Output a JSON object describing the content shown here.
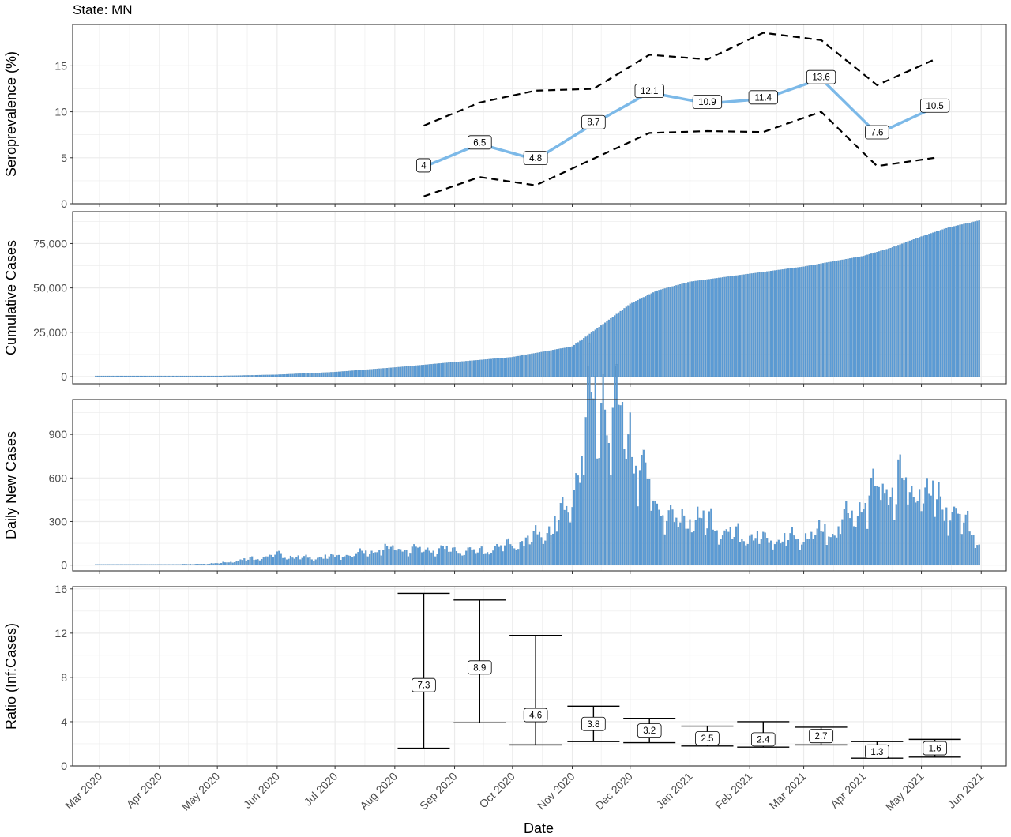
{
  "title": "State: MN",
  "xlabel": "Date",
  "colors": {
    "bar": "#5b9bd5",
    "sero_line": "#7cb9e8",
    "ci_line": "#000000",
    "grid": "#ebebeb",
    "panel_border": "#333333"
  },
  "x_axis": {
    "range": [
      "2020-02-16",
      "2021-06-14"
    ],
    "ticks": [
      "2020-03-01",
      "2020-04-01",
      "2020-05-01",
      "2020-06-01",
      "2020-07-01",
      "2020-08-01",
      "2020-09-01",
      "2020-10-01",
      "2020-11-01",
      "2020-12-01",
      "2021-01-01",
      "2021-02-01",
      "2021-03-01",
      "2021-04-01",
      "2021-05-01",
      "2021-06-01"
    ],
    "tick_labels": [
      "Mar 2020",
      "Apr 2020",
      "May 2020",
      "Jun 2020",
      "Jul 2020",
      "Aug 2020",
      "Sep 2020",
      "Oct 2020",
      "Nov 2020",
      "Dec 2020",
      "Jan 2021",
      "Feb 2021",
      "Mar 2021",
      "Apr 2021",
      "May 2021",
      "Jun 2021"
    ]
  },
  "chart_data": [
    {
      "type": "line",
      "panel": "seroprevalence",
      "ylabel": "Seroprevalence (%)",
      "ylim": [
        0,
        19.5
      ],
      "yticks": [
        0,
        5,
        10,
        15
      ],
      "ytick_labels": [
        "0",
        "5",
        "10",
        "15"
      ],
      "grid": true,
      "x": [
        "2020-08-16",
        "2020-09-14",
        "2020-10-13",
        "2020-11-12",
        "2020-12-11",
        "2021-01-10",
        "2021-02-08",
        "2021-03-10",
        "2021-04-08",
        "2021-05-08"
      ],
      "series": [
        {
          "role": "estimate",
          "values": [
            4.0,
            6.5,
            4.8,
            8.7,
            12.1,
            10.9,
            11.4,
            13.6,
            7.6,
            10.5
          ],
          "labels": [
            "4",
            "6.5",
            "4.8",
            "8.7",
            "12.1",
            "10.9",
            "11.4",
            "13.6",
            "7.6",
            "10.5"
          ]
        },
        {
          "role": "upper",
          "values": [
            8.5,
            11.0,
            12.3,
            12.5,
            16.2,
            15.7,
            18.6,
            17.8,
            12.9,
            15.7
          ]
        },
        {
          "role": "lower",
          "values": [
            0.8,
            2.9,
            2.0,
            4.9,
            7.7,
            7.9,
            7.8,
            10.0,
            4.1,
            5.0
          ]
        }
      ]
    },
    {
      "type": "bar",
      "panel": "cumulative",
      "ylabel": "Cumulative Cases",
      "ylim": [
        -4000,
        93000
      ],
      "yticks": [
        0,
        25000,
        50000,
        75000
      ],
      "ytick_labels": [
        "0",
        "25,000",
        "50,000",
        "75,000"
      ],
      "grid": true,
      "anchors": [
        [
          "2020-02-28",
          0
        ],
        [
          "2020-04-01",
          150
        ],
        [
          "2020-05-01",
          400
        ],
        [
          "2020-06-01",
          1100
        ],
        [
          "2020-07-01",
          2600
        ],
        [
          "2020-08-01",
          5200
        ],
        [
          "2020-09-01",
          8200
        ],
        [
          "2020-10-01",
          11000
        ],
        [
          "2020-11-01",
          17000
        ],
        [
          "2020-11-15",
          28000
        ],
        [
          "2020-12-01",
          41000
        ],
        [
          "2020-12-15",
          48500
        ],
        [
          "2021-01-01",
          53500
        ],
        [
          "2021-02-01",
          58000
        ],
        [
          "2021-03-01",
          62000
        ],
        [
          "2021-04-01",
          68000
        ],
        [
          "2021-04-15",
          72500
        ],
        [
          "2021-05-01",
          79000
        ],
        [
          "2021-05-15",
          84000
        ],
        [
          "2021-05-31",
          88000
        ]
      ]
    },
    {
      "type": "bar",
      "panel": "daily",
      "ylabel": "Daily New Cases",
      "ylim": [
        -40,
        1140
      ],
      "yticks": [
        0,
        300,
        600,
        900
      ],
      "ytick_labels": [
        "0",
        "300",
        "600",
        "900"
      ],
      "grid": true,
      "anchors": [
        [
          "2020-02-28",
          0
        ],
        [
          "2020-04-15",
          5
        ],
        [
          "2020-05-01",
          10
        ],
        [
          "2020-05-20",
          40
        ],
        [
          "2020-06-01",
          60
        ],
        [
          "2020-06-15",
          40
        ],
        [
          "2020-07-01",
          50
        ],
        [
          "2020-07-15",
          70
        ],
        [
          "2020-08-01",
          100
        ],
        [
          "2020-08-15",
          90
        ],
        [
          "2020-09-01",
          90
        ],
        [
          "2020-09-15",
          80
        ],
        [
          "2020-10-01",
          120
        ],
        [
          "2020-10-15",
          170
        ],
        [
          "2020-10-25",
          260
        ],
        [
          "2020-11-01",
          400
        ],
        [
          "2020-11-08",
          800
        ],
        [
          "2020-11-12",
          1000
        ],
        [
          "2020-11-18",
          950
        ],
        [
          "2020-11-25",
          900
        ],
        [
          "2020-12-01",
          800
        ],
        [
          "2020-12-07",
          550
        ],
        [
          "2020-12-15",
          350
        ],
        [
          "2020-12-25",
          250
        ],
        [
          "2021-01-01",
          280
        ],
        [
          "2021-01-10",
          240
        ],
        [
          "2021-01-20",
          180
        ],
        [
          "2021-02-01",
          160
        ],
        [
          "2021-02-15",
          150
        ],
        [
          "2021-03-01",
          160
        ],
        [
          "2021-03-15",
          200
        ],
        [
          "2021-03-25",
          280
        ],
        [
          "2021-04-01",
          370
        ],
        [
          "2021-04-10",
          450
        ],
        [
          "2021-04-20",
          460
        ],
        [
          "2021-05-01",
          450
        ],
        [
          "2021-05-10",
          380
        ],
        [
          "2021-05-20",
          270
        ],
        [
          "2021-05-28",
          200
        ],
        [
          "2021-05-31",
          130
        ]
      ]
    },
    {
      "type": "errorbar",
      "panel": "ratio",
      "ylabel": "Ratio (Inf:Cases)",
      "ylim": [
        0,
        16.2
      ],
      "yticks": [
        0,
        4,
        8,
        12,
        16
      ],
      "ytick_labels": [
        "0",
        "4",
        "8",
        "12",
        "16"
      ],
      "grid": true,
      "x": [
        "2020-08-16",
        "2020-09-14",
        "2020-10-13",
        "2020-11-12",
        "2020-12-11",
        "2021-01-10",
        "2021-02-08",
        "2021-03-10",
        "2021-04-08",
        "2021-05-08"
      ],
      "estimate": [
        7.3,
        8.9,
        4.6,
        3.8,
        3.2,
        2.5,
        2.4,
        2.7,
        1.3,
        1.6
      ],
      "labels": [
        "7.3",
        "8.9",
        "4.6",
        "3.8",
        "3.2",
        "2.5",
        "2.4",
        "2.7",
        "1.3",
        "1.6"
      ],
      "lower": [
        1.6,
        3.9,
        1.9,
        2.2,
        2.1,
        1.8,
        1.7,
        1.9,
        0.7,
        0.8
      ],
      "upper": [
        15.6,
        15.0,
        11.8,
        5.4,
        4.3,
        3.6,
        4.0,
        3.5,
        2.2,
        2.4
      ]
    }
  ]
}
